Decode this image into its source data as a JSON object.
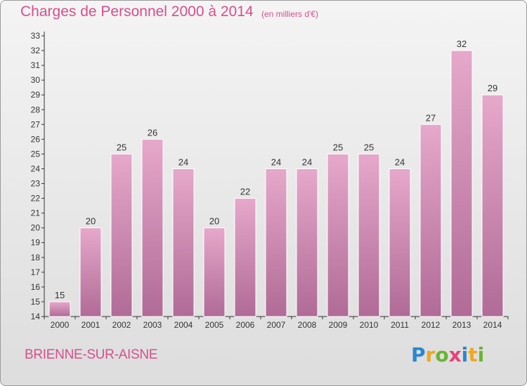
{
  "chart_data": {
    "type": "bar",
    "title": "Charges de Personnel 2000 à 2014",
    "subtitle": "(en milliers d'€)",
    "categories": [
      "2000",
      "2001",
      "2002",
      "2003",
      "2004",
      "2005",
      "2006",
      "2007",
      "2008",
      "2009",
      "2010",
      "2011",
      "2012",
      "2013",
      "2014"
    ],
    "values": [
      15,
      20,
      25,
      26,
      24,
      20,
      22,
      24,
      24,
      25,
      25,
      24,
      27,
      32,
      29
    ],
    "ylim": [
      14,
      33
    ],
    "yticks": [
      14,
      15,
      16,
      17,
      18,
      19,
      20,
      21,
      22,
      23,
      24,
      25,
      26,
      27,
      28,
      29,
      30,
      31,
      32,
      33
    ],
    "grid": false,
    "bar_color": "#d26fa3",
    "label_color": "#333333"
  },
  "commune": "BRIENNE-SUR-AISNE",
  "logo": {
    "letters": [
      "P",
      "r",
      "o",
      "x",
      "i",
      "t",
      "i"
    ],
    "colors": [
      "#2a87d0",
      "#f0a81c",
      "#68b531",
      "#e8417a",
      "#2a87d0",
      "#f0a81c",
      "#68b531"
    ]
  },
  "colors": {
    "accent": "#d64f8c",
    "axis": "#333333"
  }
}
